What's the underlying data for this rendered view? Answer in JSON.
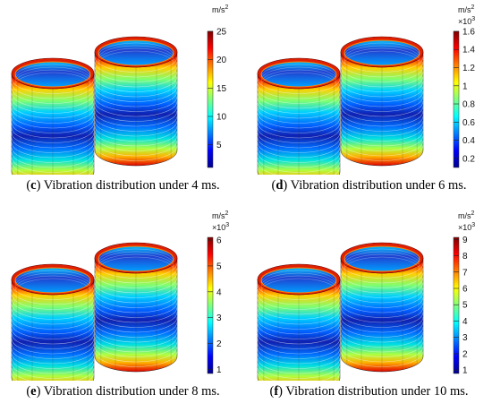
{
  "panels": [
    {
      "id": "c",
      "caption_letter": "c",
      "caption_text": "Vibration distribution under 4 ms.",
      "unit": "m/s",
      "unit_sup": "2",
      "multiplier": "",
      "multiplier_exp": "",
      "ticks": [
        "25",
        "20",
        "15",
        "10",
        "5"
      ],
      "tick_fracs": [
        1.0,
        0.792,
        0.583,
        0.375,
        0.167
      ]
    },
    {
      "id": "d",
      "caption_letter": "d",
      "caption_text": "Vibration distribution under 6 ms.",
      "unit": "m/s",
      "unit_sup": "2",
      "multiplier": "×10",
      "multiplier_exp": "3",
      "ticks": [
        "1.6",
        "1.4",
        "1.2",
        "1",
        "0.8",
        "0.6",
        "0.4",
        "0.2"
      ],
      "tick_fracs": [
        1.0,
        0.867,
        0.733,
        0.6,
        0.467,
        0.333,
        0.2,
        0.067
      ]
    },
    {
      "id": "e",
      "caption_letter": "e",
      "caption_text": "Vibration distribution under 8 ms.",
      "unit": "m/s",
      "unit_sup": "2",
      "multiplier": "×10",
      "multiplier_exp": "3",
      "ticks": [
        "6",
        "5",
        "4",
        "3",
        "2",
        "1"
      ],
      "tick_fracs": [
        0.98,
        0.79,
        0.6,
        0.41,
        0.22,
        0.03
      ]
    },
    {
      "id": "f",
      "caption_letter": "f",
      "caption_text": "Vibration distribution under 10 ms.",
      "unit": "m/s",
      "unit_sup": "2",
      "multiplier": "×10",
      "multiplier_exp": "3",
      "ticks": [
        "9",
        "8",
        "7",
        "6",
        "5",
        "4",
        "3",
        "2",
        "1"
      ],
      "tick_fracs": [
        0.985,
        0.865,
        0.745,
        0.625,
        0.505,
        0.385,
        0.265,
        0.145,
        0.025
      ]
    }
  ]
}
